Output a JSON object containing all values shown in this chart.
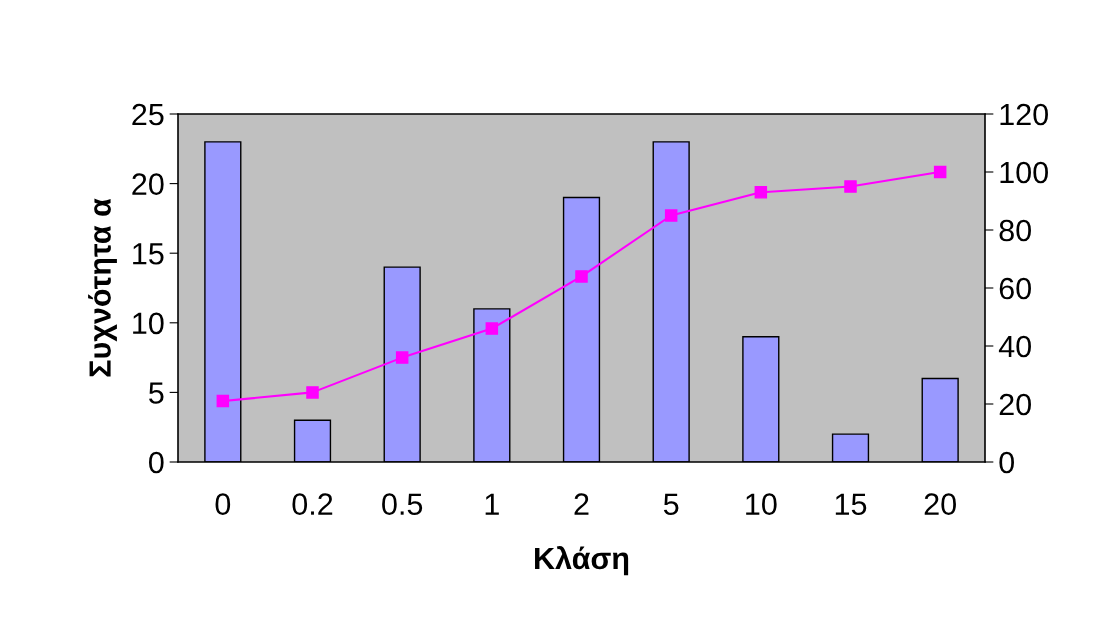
{
  "chart_data": {
    "type": "bar",
    "xlabel": "Κλάση",
    "ylabel": "Συχνότητα α",
    "categories": [
      "0",
      "0.2",
      "0.5",
      "1",
      "2",
      "5",
      "10",
      "15",
      "20"
    ],
    "series": [
      {
        "color": "#9999ff",
        "values": [
          23,
          3,
          14,
          11,
          19,
          23,
          9,
          2,
          6
        ]
      },
      {
        "type": "line",
        "axis": "y2",
        "color": "#ff00ff",
        "marker": "square",
        "values": [
          21,
          24,
          36,
          46,
          64,
          85,
          93,
          95,
          100
        ]
      }
    ],
    "ylim": [
      0,
      25
    ],
    "yticks": [
      0,
      5,
      10,
      15,
      20,
      25
    ],
    "y2lim": [
      0,
      120
    ],
    "y2ticks": [
      0,
      20,
      40,
      60,
      80,
      100,
      120
    ],
    "grid": false
  }
}
